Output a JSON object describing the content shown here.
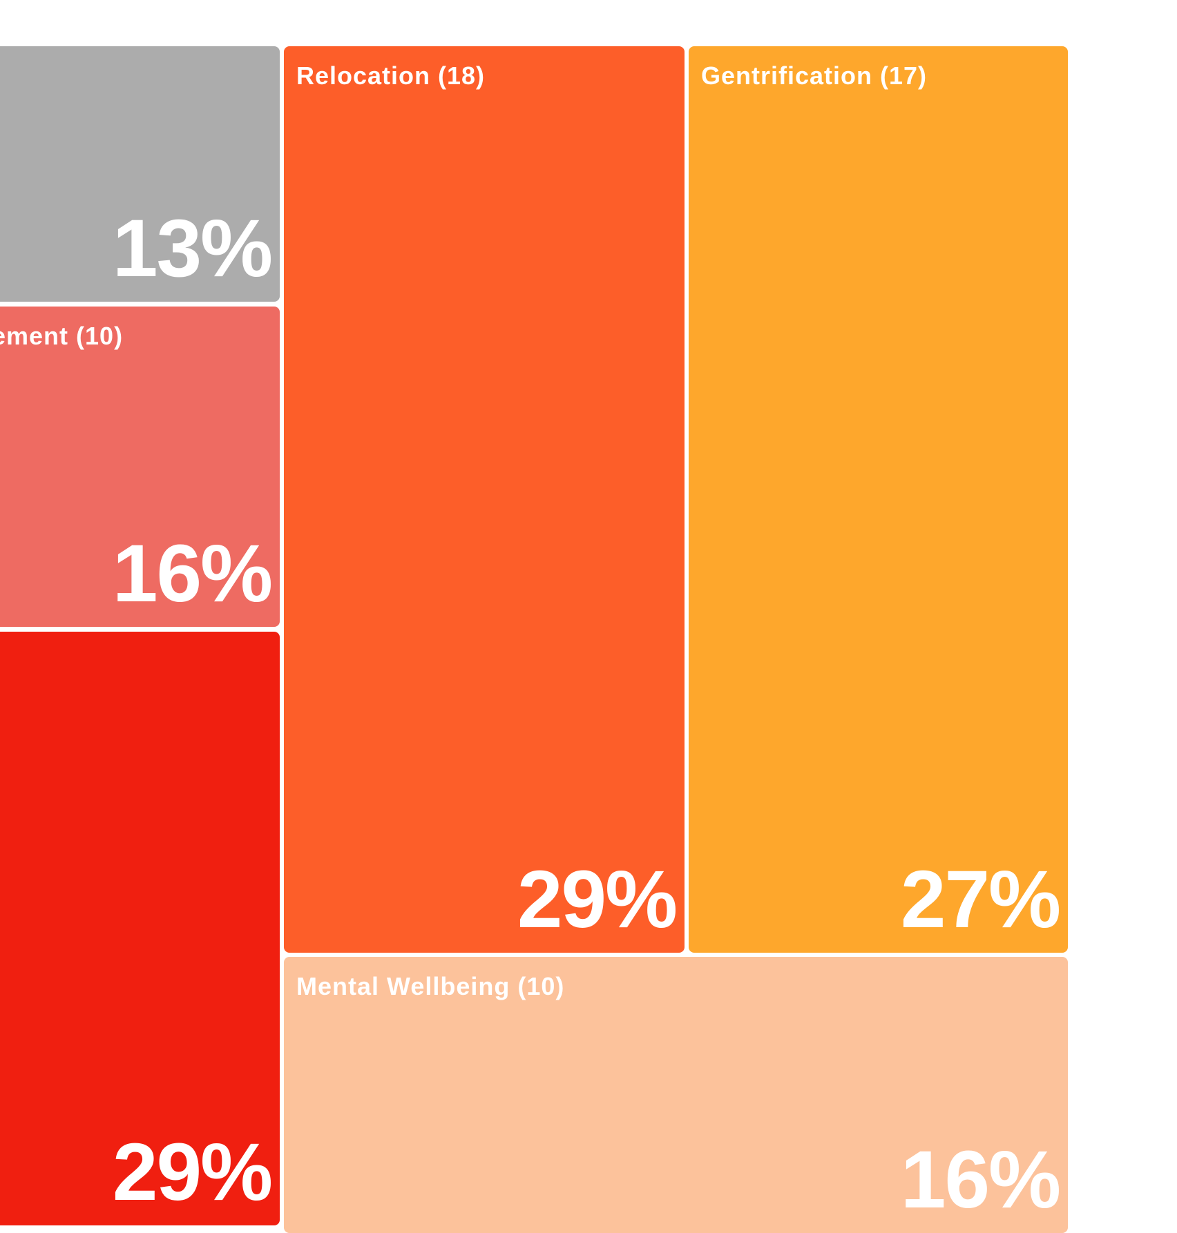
{
  "chart_data": {
    "type": "treemap",
    "cells": [
      {
        "label": "",
        "value": null,
        "percent": "13%",
        "color": "#acacac"
      },
      {
        "label": "ement (10)",
        "value": 10,
        "percent": "16%",
        "color": "#ee6b62"
      },
      {
        "label": "",
        "value": null,
        "percent": "29%",
        "color": "#f01f10"
      },
      {
        "label": "Relocation (18)",
        "value": 18,
        "percent": "29%",
        "color": "#fd5e29"
      },
      {
        "label": "Gentrification (17)",
        "value": 17,
        "percent": "27%",
        "color": "#fea72c"
      },
      {
        "label": "Mental Wellbeing (10)",
        "value": 10,
        "percent": "16%",
        "color": "#fcc29b"
      }
    ]
  }
}
